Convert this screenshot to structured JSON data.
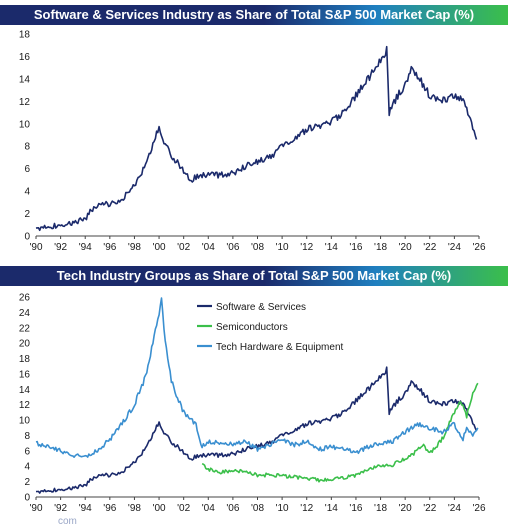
{
  "charts": [
    {
      "title": "Software & Services Industry as Share of Total S&P 500 Market Cap (%)",
      "chart_data": {
        "type": "line",
        "x_axis": "year",
        "xlim": [
          1990,
          2026
        ],
        "ylim": [
          0,
          18
        ],
        "x_ticks": [
          1990,
          1992,
          1994,
          1996,
          1998,
          2000,
          2002,
          2004,
          2006,
          2008,
          2010,
          2012,
          2014,
          2016,
          2018,
          2020,
          2022,
          2024,
          2026
        ],
        "x_tick_labels": [
          "'90",
          "'92",
          "'94",
          "'96",
          "'98",
          "'00",
          "'02",
          "'04",
          "'06",
          "'08",
          "'10",
          "'12",
          "'14",
          "'16",
          "'18",
          "'20",
          "'22",
          "'24",
          "'26"
        ],
        "y_ticks": [
          0,
          2,
          4,
          6,
          8,
          10,
          12,
          14,
          16,
          18
        ],
        "y_tick_labels": [
          "0",
          "2",
          "4",
          "6",
          "8",
          "10",
          "12",
          "14",
          "16",
          "18"
        ],
        "grid": false,
        "legend": "none",
        "series": [
          {
            "color": "#1b2a6b",
            "points": [
              [
                1990,
                0.7
              ],
              [
                1991,
                0.8
              ],
              [
                1992,
                1.0
              ],
              [
                1993,
                1.2
              ],
              [
                1994,
                1.5
              ],
              [
                1994.7,
                2.6
              ],
              [
                1995,
                2.7
              ],
              [
                1996,
                2.9
              ],
              [
                1997,
                3.3
              ],
              [
                1998,
                4.5
              ],
              [
                1999,
                6.5
              ],
              [
                1999.5,
                8.0
              ],
              [
                2000,
                9.8
              ],
              [
                2000.3,
                8.5
              ],
              [
                2001,
                7.2
              ],
              [
                2002,
                5.8
              ],
              [
                2002.5,
                5.0
              ],
              [
                2003,
                5.2
              ],
              [
                2004,
                5.5
              ],
              [
                2005,
                5.4
              ],
              [
                2006,
                5.6
              ],
              [
                2007,
                6.2
              ],
              [
                2008,
                6.6
              ],
              [
                2009,
                7.0
              ],
              [
                2010,
                8.0
              ],
              [
                2011,
                8.6
              ],
              [
                2012,
                9.5
              ],
              [
                2013,
                9.8
              ],
              [
                2014,
                10.2
              ],
              [
                2015,
                11.0
              ],
              [
                2016,
                12.5
              ],
              [
                2017,
                14.0
              ],
              [
                2018,
                15.8
              ],
              [
                2018.5,
                16.6
              ],
              [
                2018.7,
                11.0
              ],
              [
                2019,
                11.8
              ],
              [
                2020,
                13.5
              ],
              [
                2020.5,
                14.8
              ],
              [
                2021,
                14.3
              ],
              [
                2022,
                12.5
              ],
              [
                2023,
                12.0
              ],
              [
                2024,
                12.5
              ],
              [
                2024.7,
                12.2
              ],
              [
                2025,
                11.5
              ],
              [
                2025.5,
                9.5
              ],
              [
                2025.8,
                8.6
              ]
            ]
          }
        ]
      }
    },
    {
      "title": "Tech Industry Groups as Share of Total S&P 500 Market Cap (%)",
      "chart_data": {
        "type": "line",
        "x_axis": "year",
        "xlim": [
          1990,
          2026
        ],
        "ylim": [
          0,
          26
        ],
        "x_ticks": [
          1990,
          1992,
          1994,
          1996,
          1998,
          2000,
          2002,
          2004,
          2006,
          2008,
          2010,
          2012,
          2014,
          2016,
          2018,
          2020,
          2022,
          2024,
          2026
        ],
        "x_tick_labels": [
          "'90",
          "'92",
          "'94",
          "'96",
          "'98",
          "'00",
          "'02",
          "'04",
          "'06",
          "'08",
          "'10",
          "'12",
          "'14",
          "'16",
          "'18",
          "'20",
          "'22",
          "'24",
          "'26"
        ],
        "y_ticks": [
          0,
          2,
          4,
          6,
          8,
          10,
          12,
          14,
          16,
          18,
          20,
          22,
          24,
          26
        ],
        "y_tick_labels": [
          "0",
          "2",
          "4",
          "6",
          "8",
          "10",
          "12",
          "14",
          "16",
          "18",
          "20",
          "22",
          "24",
          "26"
        ],
        "grid": false,
        "legend": "top-center",
        "series": [
          {
            "name": "Software & Services",
            "color": "#1b2a6b",
            "points": [
              [
                1990,
                0.7
              ],
              [
                1991,
                0.8
              ],
              [
                1992,
                1.0
              ],
              [
                1993,
                1.2
              ],
              [
                1994,
                1.5
              ],
              [
                1994.7,
                2.6
              ],
              [
                1995,
                2.7
              ],
              [
                1996,
                2.9
              ],
              [
                1997,
                3.3
              ],
              [
                1998,
                4.5
              ],
              [
                1999,
                6.5
              ],
              [
                1999.5,
                8.0
              ],
              [
                2000,
                9.8
              ],
              [
                2000.3,
                8.5
              ],
              [
                2001,
                7.2
              ],
              [
                2002,
                5.8
              ],
              [
                2002.5,
                5.0
              ],
              [
                2003,
                5.2
              ],
              [
                2004,
                5.5
              ],
              [
                2005,
                5.4
              ],
              [
                2006,
                5.6
              ],
              [
                2007,
                6.2
              ],
              [
                2008,
                6.6
              ],
              [
                2009,
                7.0
              ],
              [
                2010,
                8.0
              ],
              [
                2011,
                8.6
              ],
              [
                2012,
                9.5
              ],
              [
                2013,
                9.8
              ],
              [
                2014,
                10.2
              ],
              [
                2015,
                11.0
              ],
              [
                2016,
                12.5
              ],
              [
                2017,
                14.0
              ],
              [
                2018,
                15.8
              ],
              [
                2018.5,
                16.6
              ],
              [
                2018.7,
                11.0
              ],
              [
                2019,
                11.8
              ],
              [
                2020,
                13.5
              ],
              [
                2020.5,
                14.8
              ],
              [
                2021,
                14.3
              ],
              [
                2022,
                12.5
              ],
              [
                2023,
                12.0
              ],
              [
                2024,
                12.5
              ],
              [
                2024.7,
                12.2
              ],
              [
                2025,
                11.5
              ],
              [
                2025.5,
                9.5
              ],
              [
                2025.8,
                8.6
              ]
            ]
          },
          {
            "name": "Semiconductors",
            "color": "#3bbf4a",
            "points": [
              [
                2003.5,
                4.5
              ],
              [
                2004,
                3.6
              ],
              [
                2005,
                3.2
              ],
              [
                2006,
                3.4
              ],
              [
                2007,
                3.3
              ],
              [
                2008,
                2.8
              ],
              [
                2009,
                2.9
              ],
              [
                2010,
                2.7
              ],
              [
                2011,
                2.6
              ],
              [
                2012,
                2.4
              ],
              [
                2013,
                2.2
              ],
              [
                2014,
                2.3
              ],
              [
                2015,
                2.5
              ],
              [
                2016,
                2.8
              ],
              [
                2017,
                3.6
              ],
              [
                2018,
                4.0
              ],
              [
                2019,
                4.2
              ],
              [
                2020,
                5.0
              ],
              [
                2021,
                6.0
              ],
              [
                2021.5,
                6.8
              ],
              [
                2022,
                5.6
              ],
              [
                2023,
                7.5
              ],
              [
                2024,
                11.0
              ],
              [
                2024.5,
                12.5
              ],
              [
                2025,
                10.5
              ],
              [
                2025.5,
                13.5
              ],
              [
                2025.9,
                14.8
              ]
            ]
          },
          {
            "name": "Tech Hardware & Equipment",
            "color": "#3a8fd0",
            "points": [
              [
                1990,
                7.0
              ],
              [
                1991,
                6.5
              ],
              [
                1992,
                6.0
              ],
              [
                1993,
                5.4
              ],
              [
                1994,
                5.2
              ],
              [
                1995,
                6.0
              ],
              [
                1996,
                7.5
              ],
              [
                1997,
                9.5
              ],
              [
                1998,
                12.0
              ],
              [
                1999,
                16.0
              ],
              [
                2000,
                24.0
              ],
              [
                2000.2,
                25.5
              ],
              [
                2000.5,
                20.0
              ],
              [
                2001,
                15.0
              ],
              [
                2002,
                11.0
              ],
              [
                2003,
                9.5
              ],
              [
                2003.5,
                6.5
              ],
              [
                2004,
                7.2
              ],
              [
                2005,
                7.0
              ],
              [
                2006,
                6.8
              ],
              [
                2007,
                7.2
              ],
              [
                2008,
                6.2
              ],
              [
                2009,
                6.8
              ],
              [
                2010,
                7.5
              ],
              [
                2011,
                6.8
              ],
              [
                2012,
                7.2
              ],
              [
                2013,
                6.2
              ],
              [
                2014,
                6.5
              ],
              [
                2015,
                6.2
              ],
              [
                2016,
                5.8
              ],
              [
                2017,
                6.5
              ],
              [
                2018,
                7.0
              ],
              [
                2019,
                7.2
              ],
              [
                2020,
                8.5
              ],
              [
                2021,
                9.5
              ],
              [
                2022,
                9.0
              ],
              [
                2023,
                8.5
              ],
              [
                2024,
                9.5
              ],
              [
                2024.7,
                7.5
              ],
              [
                2025,
                9.0
              ],
              [
                2025.5,
                8.2
              ],
              [
                2025.9,
                9.0
              ]
            ]
          }
        ]
      }
    }
  ],
  "footer": {
    "text": "com"
  }
}
